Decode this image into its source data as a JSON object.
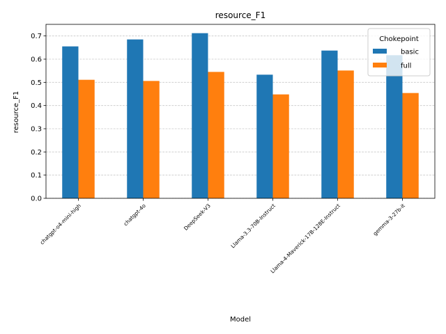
{
  "chart_data": {
    "type": "bar",
    "title": "resource_F1",
    "xlabel": "Model",
    "ylabel": "resource_F1",
    "categories": [
      "chatgpt-o4-mini-high",
      "chatgpt-4o",
      "DeepSeek-V3",
      "Llama-3.3-70B-Instruct",
      "Llama-4-Maverick-17B-128E-Instruct",
      "gemma-3-27b-it"
    ],
    "series": [
      {
        "name": "basic",
        "color": "#1f77b4",
        "values": [
          0.655,
          0.685,
          0.712,
          0.533,
          0.637,
          0.617
        ]
      },
      {
        "name": "full",
        "color": "#ff7f0e",
        "values": [
          0.511,
          0.506,
          0.545,
          0.448,
          0.551,
          0.454
        ]
      }
    ],
    "ylim": [
      0,
      0.75
    ],
    "yticks": [
      0.0,
      0.1,
      0.2,
      0.3,
      0.4,
      0.5,
      0.6,
      0.7
    ],
    "ytick_labels": [
      "0.0",
      "0.1",
      "0.2",
      "0.3",
      "0.4",
      "0.5",
      "0.6",
      "0.7"
    ],
    "grid": "y-dashed",
    "legend": {
      "title": "Chokepoint",
      "position": "top-right"
    }
  }
}
